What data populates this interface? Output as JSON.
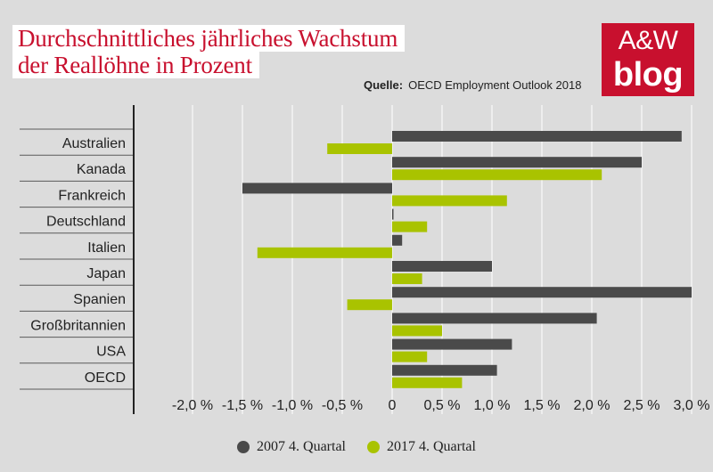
{
  "title_line1": "Durchschnittliches jährliches Wachstum",
  "title_line2": "der Reallöhne in Prozent",
  "source_label": "Quelle:",
  "source_text": "OECD Employment Outlook 2018",
  "logo_top": "A&W",
  "logo_bottom": "blog",
  "colors": {
    "series1": "#4a4a4a",
    "series2": "#a9c300",
    "title": "#c8102e",
    "background": "#dcdcdc"
  },
  "chart_data": {
    "type": "bar",
    "orientation": "horizontal",
    "categories": [
      "Australien",
      "Kanada",
      "Frankreich",
      "Deutschland",
      "Italien",
      "Japan",
      "Spanien",
      "Großbritannien",
      "USA",
      "OECD"
    ],
    "series": [
      {
        "name": "2007 4. Quartal",
        "color": "#4a4a4a",
        "values": [
          2.9,
          2.5,
          -1.5,
          0.0,
          0.1,
          1.0,
          3.0,
          2.05,
          1.2,
          1.05
        ]
      },
      {
        "name": "2017 4. Quartal",
        "color": "#a9c300",
        "values": [
          -0.65,
          2.1,
          1.15,
          0.35,
          -1.35,
          0.3,
          -0.45,
          0.5,
          0.35,
          0.7
        ]
      }
    ],
    "xlim": [
      -2.5,
      3.0
    ],
    "ticks": [
      -2.0,
      -1.5,
      -1.0,
      -0.5,
      0,
      0.5,
      1.0,
      1.5,
      2.0,
      2.5,
      3.0
    ],
    "tick_labels": [
      "-2,0 %",
      "-1,5 %",
      "-1,0 %",
      "-0,5 %",
      "0",
      "0,5 %",
      "1,0 %",
      "1,5 %",
      "2,0 %",
      "2,5 %",
      "3,0 %"
    ],
    "legend_position": "bottom",
    "grid": true
  }
}
